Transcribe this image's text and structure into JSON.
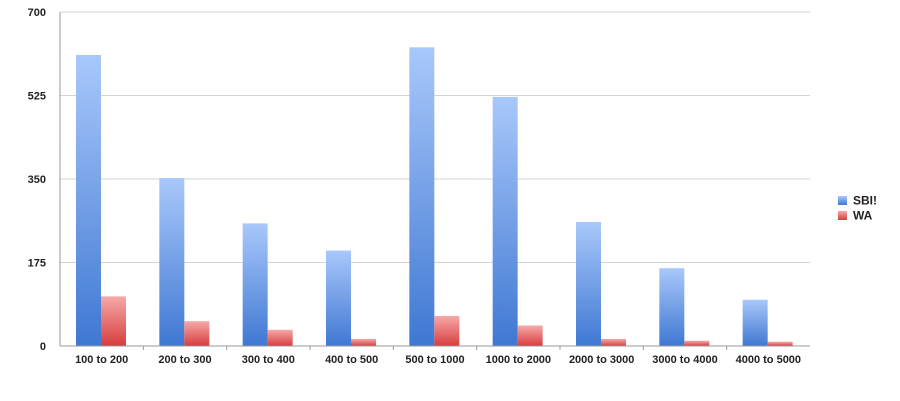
{
  "chart_data": {
    "type": "bar",
    "title": "",
    "xlabel": "",
    "ylabel": "",
    "categories": [
      "100 to 200",
      "200 to 300",
      "300 to 400",
      "400 to 500",
      "500 to 1000",
      "1000 to 2000",
      "2000 to 3000",
      "3000 to 4000",
      "4000 to 5000"
    ],
    "series": [
      {
        "name": "SBI!",
        "values": [
          610,
          352,
          257,
          200,
          626,
          522,
          260,
          163,
          97
        ],
        "color": "#5b8fdc"
      },
      {
        "name": "WA",
        "values": [
          104,
          52,
          34,
          15,
          63,
          43,
          15,
          11,
          9
        ],
        "color": "#e05a5a"
      }
    ],
    "ylim": [
      0,
      700
    ],
    "yticks": [
      "0",
      "175",
      "350",
      "525",
      "700"
    ],
    "grid": true,
    "legend_position": "right"
  }
}
